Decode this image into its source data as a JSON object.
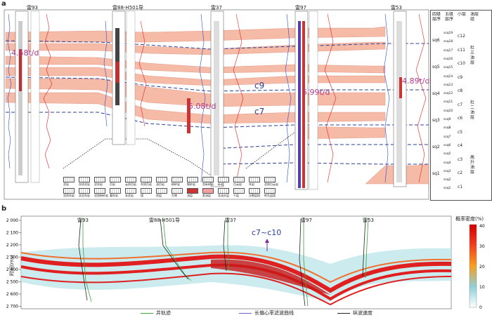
{
  "panel_a": {
    "label": "a",
    "wells": [
      "雷93",
      "雷88-H501导",
      "雷37",
      "雷97",
      "雷53"
    ],
    "zone_labels": [
      "c9",
      "c7"
    ],
    "production_labels": [
      "4.58t/d",
      "5.08t/d",
      "5.99t/d",
      "4.89t/d"
    ],
    "right_header": {
      "col1": "四级层序",
      "col2": "五级层序",
      "col3": "小层",
      "col4": "油层组"
    },
    "sequence4": [
      "sq6",
      "sq5",
      "sq4",
      "sq3",
      "sq2",
      "sq1"
    ],
    "sequence5": [
      "ssq19",
      "ssq18",
      "ssq17",
      "ssq16",
      "ssq15",
      "ssq14",
      "ssq13",
      "ssq12",
      "ssq11",
      "ssq10",
      "ssq9",
      "ssq8",
      "ssq7",
      "ssq6",
      "ssq5",
      "ssq4",
      "ssq3",
      "ssq2",
      "ssq1"
    ],
    "layers": [
      "c12",
      "c11",
      "c10",
      "c9",
      "c8",
      "c7",
      "c6",
      "c5",
      "c4",
      "c3",
      "c2",
      "c1"
    ],
    "oil_groups": [
      "杜三油层",
      "杜二油层",
      "高升油层"
    ],
    "legend": [
      "泥岩",
      "灰质泥岩",
      "泥灰岩",
      "页岩",
      "云质页岩",
      "灰质页岩",
      "油页岩",
      "粉砂岩",
      "细砂岩",
      "含砾砂岩",
      "砾岩",
      "白云岩",
      "灰岩",
      "泥质白云岩",
      "泥质灰岩",
      "含泥灰岩",
      "泥质粉砂岩",
      "凝灰岩",
      "玄武岩",
      "煤",
      "纹层",
      "生物",
      "油层",
      "差油层",
      "含油水层",
      "干层",
      "压裂层段",
      "射孔层段"
    ]
  },
  "panel_b": {
    "label": "b",
    "wells": [
      "雷93",
      "雷88-H501导",
      "雷37",
      "雷97",
      "雷53"
    ],
    "annotation": "c7~c10",
    "y_axis_label": "时间(ms)",
    "y_ticks": [
      "2 000",
      "2 100",
      "2 200",
      "2 300",
      "2 400",
      "2 500",
      "2 600",
      "2 700"
    ],
    "colorbar_title": "概率密度(%)",
    "colorbar_ticks": [
      "40",
      "30",
      "20",
      "10",
      "0"
    ],
    "legend": [
      {
        "label": "井轨迹",
        "color": "#3aa33a"
      },
      {
        "label": "长偏心率滤波曲线",
        "color": "#7a5cc8"
      },
      {
        "label": "纵波速度",
        "color": "#222222"
      }
    ]
  }
}
